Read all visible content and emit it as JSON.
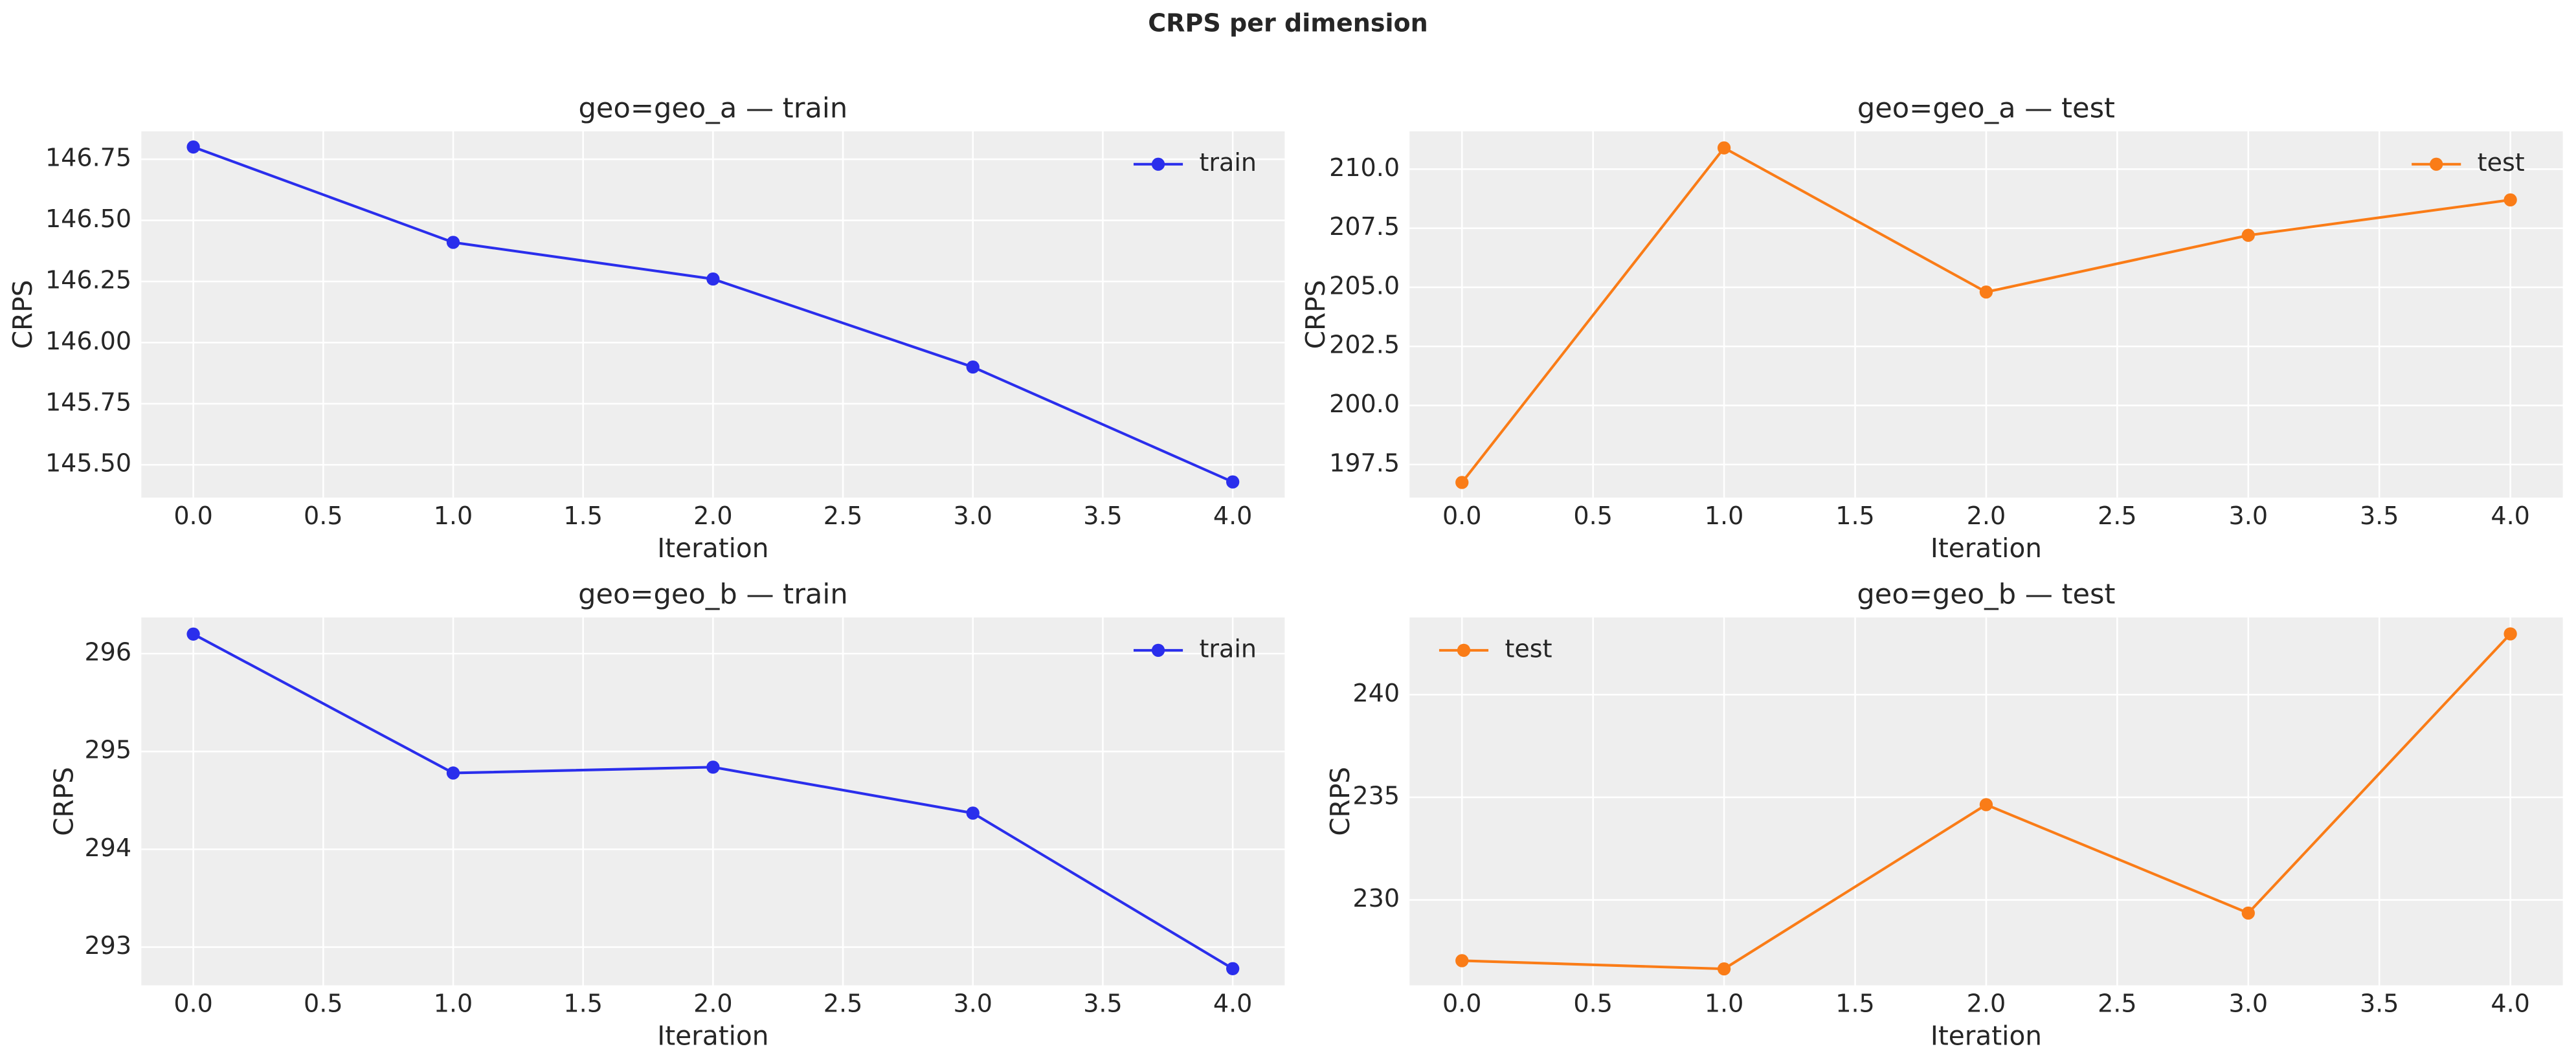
{
  "title": "CRPS per dimension",
  "chart_data": [
    {
      "type": "line",
      "title": "geo=geo_a — train",
      "x_label": "Iteration",
      "y_label": "CRPS",
      "x": [
        0,
        1,
        2,
        3,
        4
      ],
      "legend": "upper right",
      "grid": true,
      "series": [
        {
          "name": "train",
          "color": "#2a2eec",
          "values": [
            146.8,
            146.41,
            146.26,
            145.9,
            145.43
          ]
        }
      ],
      "xlim": [
        -0.2,
        4.2
      ],
      "xticks": [
        {
          "value": 0,
          "label": "0.0"
        },
        0.5,
        {
          "value": 1,
          "label": "1.0"
        },
        1.5,
        {
          "value": 2,
          "label": "2.0"
        },
        2.5,
        {
          "value": 3,
          "label": "3.0"
        },
        3.5,
        {
          "value": 4,
          "label": "4.0"
        }
      ],
      "ylim": [
        145.366,
        146.864
      ],
      "yticks": [
        {
          "value": 145.5,
          "label": "145.50"
        },
        145.75,
        {
          "value": 146.0,
          "label": "146.00"
        },
        146.25,
        {
          "value": 146.5,
          "label": "146.50"
        },
        146.75
      ]
    },
    {
      "type": "line",
      "title": "geo=geo_a — test",
      "x_label": "Iteration",
      "y_label": "CRPS",
      "x": [
        0,
        1,
        2,
        3,
        4
      ],
      "legend": "upper right",
      "grid": true,
      "series": [
        {
          "name": "test",
          "color": "#fa7c17",
          "values": [
            196.74,
            210.9,
            204.8,
            207.2,
            208.7
          ]
        }
      ],
      "xlim": [
        -0.2,
        4.2
      ],
      "xticks": [
        {
          "value": 0,
          "label": "0.0"
        },
        0.5,
        {
          "value": 1,
          "label": "1.0"
        },
        1.5,
        {
          "value": 2,
          "label": "2.0"
        },
        2.5,
        {
          "value": 3,
          "label": "3.0"
        },
        3.5,
        {
          "value": 4,
          "label": "4.0"
        }
      ],
      "ylim": [
        196.1,
        211.6
      ],
      "yticks": [
        197.5,
        {
          "value": 200.0,
          "label": "200.0"
        },
        202.5,
        {
          "value": 205.0,
          "label": "205.0"
        },
        207.5,
        {
          "value": 210.0,
          "label": "210.0"
        }
      ]
    },
    {
      "type": "line",
      "title": "geo=geo_b — train",
      "x_label": "Iteration",
      "y_label": "CRPS",
      "x": [
        0,
        1,
        2,
        3,
        4
      ],
      "legend": "upper right",
      "grid": true,
      "series": [
        {
          "name": "train",
          "color": "#2a2eec",
          "values": [
            296.2,
            294.78,
            294.84,
            294.37,
            292.78
          ]
        }
      ],
      "xlim": [
        -0.2,
        4.2
      ],
      "xticks": [
        {
          "value": 0,
          "label": "0.0"
        },
        0.5,
        {
          "value": 1,
          "label": "1.0"
        },
        1.5,
        {
          "value": 2,
          "label": "2.0"
        },
        2.5,
        {
          "value": 3,
          "label": "3.0"
        },
        3.5,
        {
          "value": 4,
          "label": "4.0"
        }
      ],
      "ylim": [
        292.61,
        296.37
      ],
      "yticks": [
        293,
        294,
        295,
        296
      ]
    },
    {
      "type": "line",
      "title": "geo=geo_b — test",
      "x_label": "Iteration",
      "y_label": "CRPS",
      "x": [
        0,
        1,
        2,
        3,
        4
      ],
      "legend": "upper left",
      "grid": true,
      "series": [
        {
          "name": "test",
          "color": "#fa7c17",
          "values": [
            227.04,
            226.64,
            234.64,
            229.36,
            242.96
          ]
        }
      ],
      "xlim": [
        -0.2,
        4.2
      ],
      "xticks": [
        {
          "value": 0,
          "label": "0.0"
        },
        0.5,
        {
          "value": 1,
          "label": "1.0"
        },
        1.5,
        {
          "value": 2,
          "label": "2.0"
        },
        2.5,
        {
          "value": 3,
          "label": "3.0"
        },
        3.5,
        {
          "value": 4,
          "label": "4.0"
        }
      ],
      "ylim": [
        225.84,
        243.76
      ],
      "yticks": [
        230,
        235,
        240
      ]
    }
  ]
}
